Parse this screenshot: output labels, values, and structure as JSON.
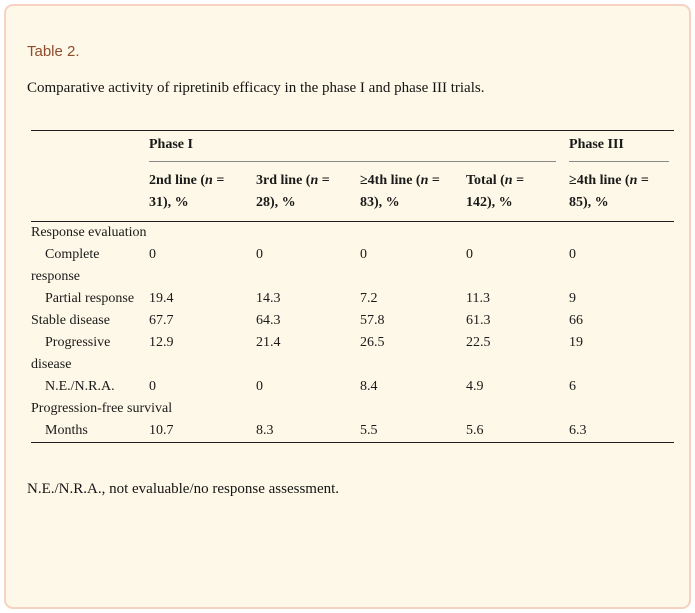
{
  "card": {
    "title": "Table 2.",
    "caption": "Comparative activity of ripretinib efficacy in the phase I and phase III trials.",
    "footnote": "N.E./N.R.A., not evaluable/no response assessment."
  },
  "colors": {
    "card_background": "#fdf8e7",
    "card_border": "#f5d2c2",
    "title_text": "#8f4b2e",
    "rule_dark": "#1f1f1f",
    "rule_gray": "#8a8a8a"
  },
  "table": {
    "column_groups": [
      {
        "label": "Phase I",
        "span": 4
      },
      {
        "label": "Phase III",
        "span": 1
      }
    ],
    "columns": [
      {
        "line1_pre": "2nd line (",
        "line1_var": "n",
        "line1_post": " =",
        "line2": "31), %"
      },
      {
        "line1_pre": "3rd line (",
        "line1_var": "n",
        "line1_post": " =",
        "line2": "28), %"
      },
      {
        "line1_pre": "≥4th line (",
        "line1_var": "n",
        "line1_post": " =",
        "line2": "83), %"
      },
      {
        "line1_pre": "Total (",
        "line1_var": "n",
        "line1_post": " =",
        "line2": "142), %"
      },
      {
        "line1_pre": "≥4th line (",
        "line1_var": "n",
        "line1_post": " =",
        "line2": "85), %"
      }
    ],
    "rows": [
      {
        "type": "section",
        "label": "Response evaluation"
      },
      {
        "type": "data",
        "indent": true,
        "label": "Complete response",
        "values": [
          "0",
          "0",
          "0",
          "0",
          "0"
        ]
      },
      {
        "type": "data",
        "indent": true,
        "label": "Partial response",
        "values": [
          "19.4",
          "14.3",
          "7.2",
          "11.3",
          "9"
        ]
      },
      {
        "type": "data",
        "indent": false,
        "label": "Stable disease",
        "values": [
          "67.7",
          "64.3",
          "57.8",
          "61.3",
          "66"
        ]
      },
      {
        "type": "data",
        "indent": true,
        "label": "Progressive disease",
        "values": [
          "12.9",
          "21.4",
          "26.5",
          "22.5",
          "19"
        ]
      },
      {
        "type": "data",
        "indent": true,
        "label": "N.E./N.R.A.",
        "values": [
          "0",
          "0",
          "8.4",
          "4.9",
          "6"
        ]
      },
      {
        "type": "section",
        "label": "Progression-free survival"
      },
      {
        "type": "data",
        "indent": true,
        "label": "Months",
        "values": [
          "10.7",
          "8.3",
          "5.5",
          "5.6",
          "6.3"
        ]
      }
    ]
  }
}
